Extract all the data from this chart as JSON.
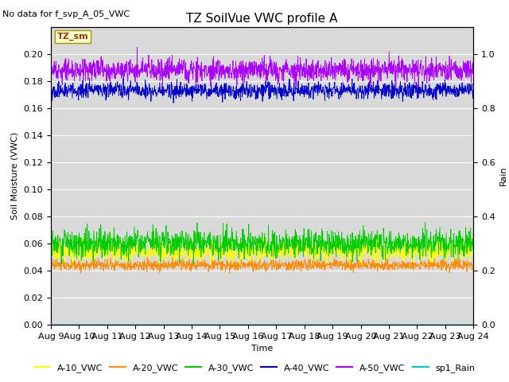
{
  "title": "TZ SoilVue VWC profile A",
  "no_data_label": "No data for f_svp_A_05_VWC",
  "xlabel": "Time",
  "ylabel_left": "Soil Moisture (VWC)",
  "ylabel_right": "Rain",
  "annotation_box": "TZ_sm",
  "xlim_days": [
    0,
    15
  ],
  "ylim_left": [
    0.0,
    0.22
  ],
  "ylim_right": [
    0.0,
    1.1
  ],
  "yticks_left": [
    0.0,
    0.02,
    0.04,
    0.06,
    0.08,
    0.1,
    0.12,
    0.14,
    0.16,
    0.18,
    0.2
  ],
  "yticks_right": [
    0.0,
    0.2,
    0.4,
    0.6,
    0.8,
    1.0
  ],
  "xtick_labels": [
    "Aug 9",
    "Aug 10",
    "Aug 11",
    "Aug 12",
    "Aug 13",
    "Aug 14",
    "Aug 15",
    "Aug 16",
    "Aug 17",
    "Aug 18",
    "Aug 19",
    "Aug 20",
    "Aug 21",
    "Aug 22",
    "Aug 23",
    "Aug 24"
  ],
  "series": {
    "A-10_VWC": {
      "color": "#ffff00",
      "mean": 0.054,
      "noise": 0.004,
      "seed": 42
    },
    "A-20_VWC": {
      "color": "#ff8c00",
      "mean": 0.044,
      "noise": 0.002,
      "seed": 43
    },
    "A-30_VWC": {
      "color": "#00cc00",
      "mean": 0.06,
      "noise": 0.005,
      "seed": 44
    },
    "A-40_VWC": {
      "color": "#0000cc",
      "mean": 0.173,
      "noise": 0.003,
      "seed": 45
    },
    "A-50_VWC": {
      "color": "#aa00ff",
      "mean": 0.188,
      "noise": 0.004,
      "seed": 46
    },
    "sp1_Rain": {
      "color": "#00cccc",
      "mean": 0.0,
      "noise": 0.0,
      "seed": 47
    }
  },
  "n_points": 1500,
  "legend_labels": [
    "A-10_VWC",
    "A-20_VWC",
    "A-30_VWC",
    "A-40_VWC",
    "A-50_VWC",
    "sp1_Rain"
  ],
  "legend_colors": [
    "#ffff00",
    "#ff8c00",
    "#00cc00",
    "#0000cc",
    "#aa00ff",
    "#00cccc"
  ],
  "bg_color": "#d9d9d9",
  "fig_bg": "#ffffff",
  "font_size": 8,
  "title_font_size": 11
}
